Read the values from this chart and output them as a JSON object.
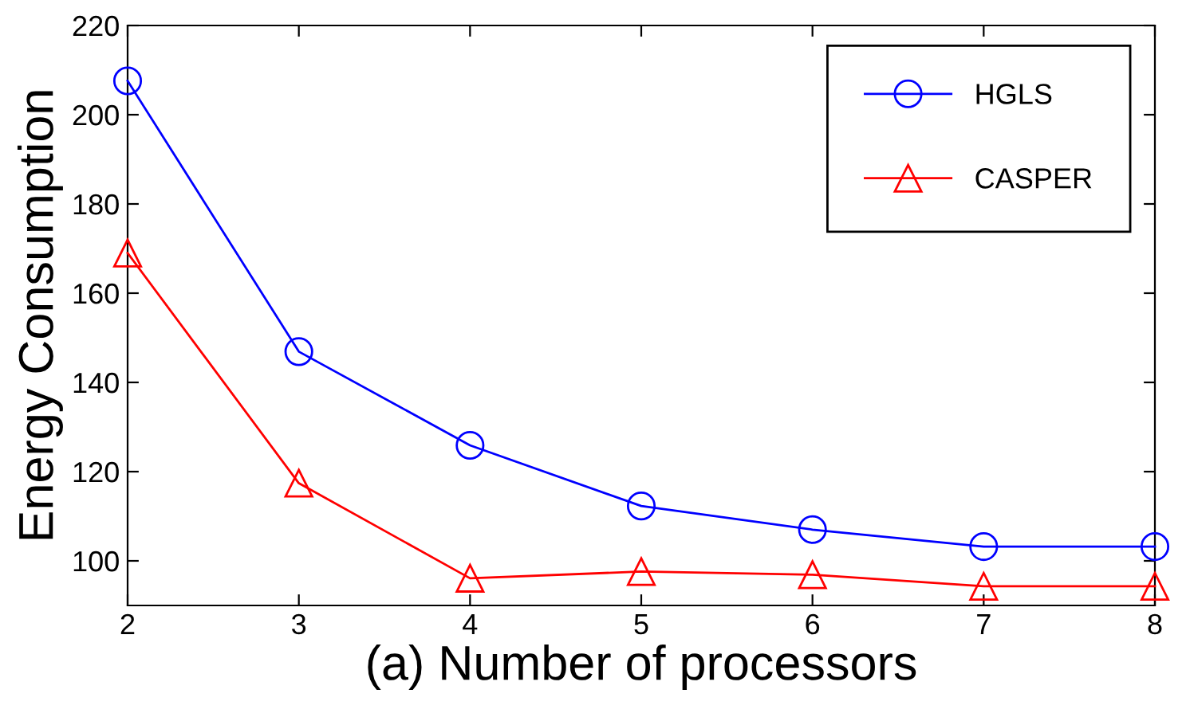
{
  "chart_data": {
    "type": "line",
    "xlabel": "(a) Number of processors",
    "ylabel": "Energy Consumption",
    "x": [
      2,
      3,
      4,
      5,
      6,
      7,
      8
    ],
    "series": [
      {
        "name": "HGLS",
        "color": "#0000ff",
        "marker": "circle",
        "values": [
          207.6,
          146.9,
          125.9,
          112.3,
          107,
          103.2,
          103.2
        ]
      },
      {
        "name": "CASPER",
        "color": "#ff0000",
        "marker": "triangle",
        "values": [
          169,
          117.4,
          96.1,
          97.6,
          96.9,
          94.3,
          94.3
        ]
      }
    ],
    "xlim": [
      2,
      8
    ],
    "xticks": [
      2,
      3,
      4,
      5,
      6,
      7,
      8
    ],
    "ylim": [
      90,
      220
    ],
    "yticks": [
      100,
      120,
      140,
      160,
      180,
      200,
      220
    ],
    "grid": false,
    "legend": "top right",
    "line_style": "solid"
  }
}
